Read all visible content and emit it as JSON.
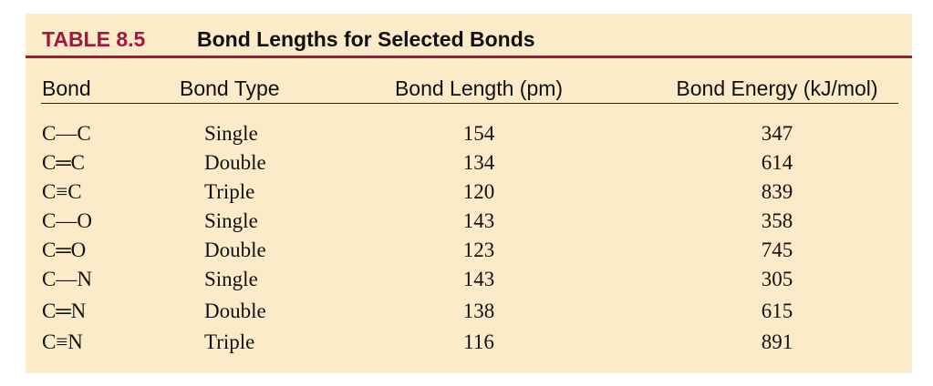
{
  "table": {
    "label": "TABLE 8.5",
    "title": "Bond Lengths for Selected Bonds",
    "header": [
      "Bond",
      "Bond Type",
      "Bond Length (pm)",
      "Bond Energy (kJ/mol)"
    ],
    "rows": [
      [
        "C—C",
        "Single",
        154,
        347
      ],
      [
        "C═C",
        "Double",
        134,
        614
      ],
      [
        "C≡C",
        "Triple",
        120,
        839
      ],
      [
        "C—O",
        "Single",
        143,
        358
      ],
      [
        "C═O",
        "Double",
        123,
        745
      ],
      [
        "C—N",
        "Single",
        143,
        305
      ],
      [
        "C═N",
        "Double",
        138,
        615
      ],
      [
        "C≡N",
        "Triple",
        116,
        891
      ]
    ]
  }
}
